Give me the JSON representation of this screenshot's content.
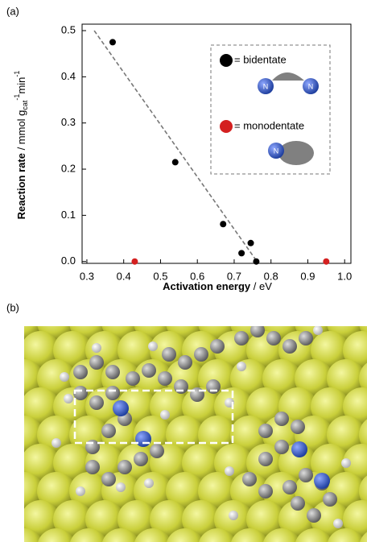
{
  "chart_data": {
    "type": "scatter",
    "panel_a": "(a)",
    "panel_b": "(b)",
    "x_label": {
      "bold": "Activation energy",
      "rest": " / eV"
    },
    "y_label": {
      "bold": "Reaction rate",
      "rest": " / mmol g",
      "sub": "cat",
      "sup1": "-1",
      "unit2": "min",
      "sup2": "-1"
    },
    "xlim": [
      0.287,
      1.017
    ],
    "ylim": [
      -0.004,
      0.514
    ],
    "xticks": [
      0.3,
      0.4,
      0.5,
      0.6,
      0.7,
      0.8,
      0.9,
      {
        "value": 1,
        "label": "1.0"
      }
    ],
    "yticks": [
      {
        "value": 0,
        "label": "0.0"
      },
      0.1,
      0.2,
      0.3,
      0.4,
      0.5
    ],
    "series": [
      {
        "name": "= bidentate",
        "color": "#000000",
        "x": [
          0.37,
          0.54,
          0.67,
          0.72,
          0.745,
          0.76
        ],
        "values": [
          0.475,
          0.215,
          0.081,
          0.018,
          0.04,
          0.0
        ]
      },
      {
        "name": "= monodentate",
        "color": "#d42020",
        "x": [
          0.43,
          0.95
        ],
        "values": [
          0.0,
          0.0
        ]
      }
    ],
    "fit_line": {
      "color": "#777777",
      "x": [
        0.32,
        0.762
      ],
      "values": [
        0.5,
        0.0
      ]
    }
  }
}
